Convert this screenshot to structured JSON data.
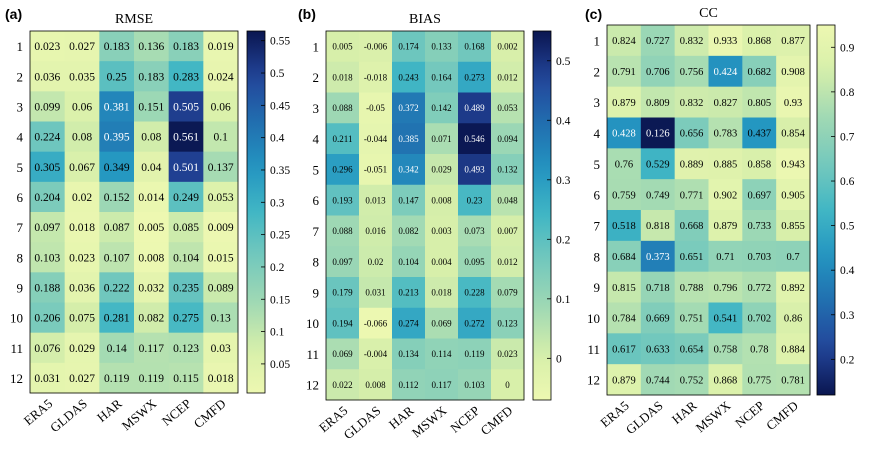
{
  "chart_data": [
    {
      "type": "heatmap",
      "panel_label": "(a)",
      "title": "RMSE",
      "x_categories": [
        "ERA5",
        "GLDAS",
        "HAR",
        "MSWX",
        "NCEP",
        "CMFD"
      ],
      "y_categories": [
        "1",
        "2",
        "3",
        "4",
        "5",
        "6",
        "7",
        "8",
        "9",
        "10",
        "11",
        "12"
      ],
      "values": [
        [
          "0.023",
          "0.027",
          "0.183",
          "0.136",
          "0.183",
          "0.019"
        ],
        [
          "0.036",
          "0.035",
          "0.25",
          "0.183",
          "0.283",
          "0.024"
        ],
        [
          "0.099",
          "0.06",
          "0.381",
          "0.151",
          "0.505",
          "0.06"
        ],
        [
          "0.224",
          "0.08",
          "0.395",
          "0.08",
          "0.561",
          "0.1"
        ],
        [
          "0.305",
          "0.067",
          "0.349",
          "0.04",
          "0.501",
          "0.137"
        ],
        [
          "0.204",
          "0.02",
          "0.152",
          "0.014",
          "0.249",
          "0.053"
        ],
        [
          "0.097",
          "0.018",
          "0.087",
          "0.005",
          "0.085",
          "0.009"
        ],
        [
          "0.103",
          "0.023",
          "0.107",
          "0.008",
          "0.104",
          "0.015"
        ],
        [
          "0.188",
          "0.036",
          "0.222",
          "0.032",
          "0.235",
          "0.089"
        ],
        [
          "0.206",
          "0.075",
          "0.281",
          "0.082",
          "0.275",
          "0.13"
        ],
        [
          "0.076",
          "0.029",
          "0.14",
          "0.117",
          "0.123",
          "0.03"
        ],
        [
          "0.031",
          "0.027",
          "0.119",
          "0.119",
          "0.115",
          "0.018"
        ]
      ],
      "colorbar": {
        "min": 0.005,
        "max": 0.565,
        "ticks": [
          "0.55",
          "0.5",
          "0.45",
          "0.4",
          "0.35",
          "0.3",
          "0.25",
          "0.2",
          "0.15",
          "0.1",
          "0.05"
        ],
        "tick_values": [
          0.55,
          0.5,
          0.45,
          0.4,
          0.35,
          0.3,
          0.25,
          0.2,
          0.15,
          0.1,
          0.05
        ]
      }
    },
    {
      "type": "heatmap",
      "panel_label": "(b)",
      "title": "BIAS",
      "x_categories": [
        "ERA5",
        "GLDAS",
        "HAR",
        "MSWX",
        "NCEP",
        "CMFD"
      ],
      "y_categories": [
        "1",
        "2",
        "3",
        "4",
        "5",
        "6",
        "7",
        "8",
        "9",
        "10",
        "11",
        "12"
      ],
      "values": [
        [
          "0.005",
          "-0.006",
          "0.174",
          "0.133",
          "0.168",
          "0.002"
        ],
        [
          "0.018",
          "-0.018",
          "0.243",
          "0.164",
          "0.273",
          "0.012"
        ],
        [
          "0.088",
          "-0.05",
          "0.372",
          "0.142",
          "0.489",
          "0.053"
        ],
        [
          "0.211",
          "-0.044",
          "0.385",
          "0.071",
          "0.546",
          "0.094"
        ],
        [
          "0.296",
          "-0.051",
          "0.342",
          "0.029",
          "0.493",
          "0.132"
        ],
        [
          "0.193",
          "0.013",
          "0.147",
          "0.008",
          "0.23",
          "0.048"
        ],
        [
          "0.088",
          "0.016",
          "0.082",
          "0.003",
          "0.073",
          "0.007"
        ],
        [
          "0.097",
          "0.02",
          "0.104",
          "0.004",
          "0.095",
          "0.012"
        ],
        [
          "0.179",
          "0.031",
          "0.213",
          "0.018",
          "0.228",
          "0.079"
        ],
        [
          "0.194",
          "-0.066",
          "0.274",
          "0.069",
          "0.272",
          "0.123"
        ],
        [
          "0.069",
          "-0.004",
          "0.134",
          "0.114",
          "0.119",
          "0.023"
        ],
        [
          "0.022",
          "0.008",
          "0.112",
          "0.117",
          "0.103",
          "0"
        ]
      ],
      "colorbar": {
        "min": -0.07,
        "max": 0.55,
        "ticks": [
          "0.5",
          "0.4",
          "0.3",
          "0.2",
          "0.1",
          "0"
        ],
        "tick_values": [
          0.5,
          0.4,
          0.3,
          0.2,
          0.1,
          0
        ]
      }
    },
    {
      "type": "heatmap",
      "panel_label": "(c)",
      "title": "CC",
      "x_categories": [
        "ERA5",
        "GLDAS",
        "HAR",
        "MSWX",
        "NCEP",
        "CMFD"
      ],
      "y_categories": [
        "1",
        "2",
        "3",
        "4",
        "5",
        "6",
        "7",
        "8",
        "9",
        "10",
        "11",
        "12"
      ],
      "values": [
        [
          "0.824",
          "0.727",
          "0.832",
          "0.933",
          "0.868",
          "0.877"
        ],
        [
          "0.791",
          "0.706",
          "0.756",
          "0.424",
          "0.682",
          "0.908"
        ],
        [
          "0.879",
          "0.809",
          "0.832",
          "0.827",
          "0.805",
          "0.93"
        ],
        [
          "0.428",
          "0.126",
          "0.656",
          "0.783",
          "0.437",
          "0.854"
        ],
        [
          "0.76",
          "0.529",
          "0.889",
          "0.885",
          "0.858",
          "0.943"
        ],
        [
          "0.759",
          "0.749",
          "0.771",
          "0.902",
          "0.697",
          "0.905"
        ],
        [
          "0.518",
          "0.818",
          "0.668",
          "0.879",
          "0.733",
          "0.855"
        ],
        [
          "0.684",
          "0.373",
          "0.651",
          "0.71",
          "0.703",
          "0.7"
        ],
        [
          "0.815",
          "0.718",
          "0.788",
          "0.796",
          "0.772",
          "0.892"
        ],
        [
          "0.784",
          "0.669",
          "0.751",
          "0.541",
          "0.702",
          "0.86"
        ],
        [
          "0.617",
          "0.633",
          "0.654",
          "0.758",
          "0.78",
          "0.884"
        ],
        [
          "0.879",
          "0.744",
          "0.752",
          "0.868",
          "0.775",
          "0.781"
        ]
      ],
      "colorbar": {
        "min": 0.12,
        "max": 0.95,
        "reversed": true,
        "ticks": [
          "0.9",
          "0.8",
          "0.7",
          "0.6",
          "0.5",
          "0.4",
          "0.3",
          "0.2"
        ],
        "tick_values": [
          0.9,
          0.8,
          0.7,
          0.6,
          0.5,
          0.4,
          0.3,
          0.2
        ]
      }
    }
  ]
}
